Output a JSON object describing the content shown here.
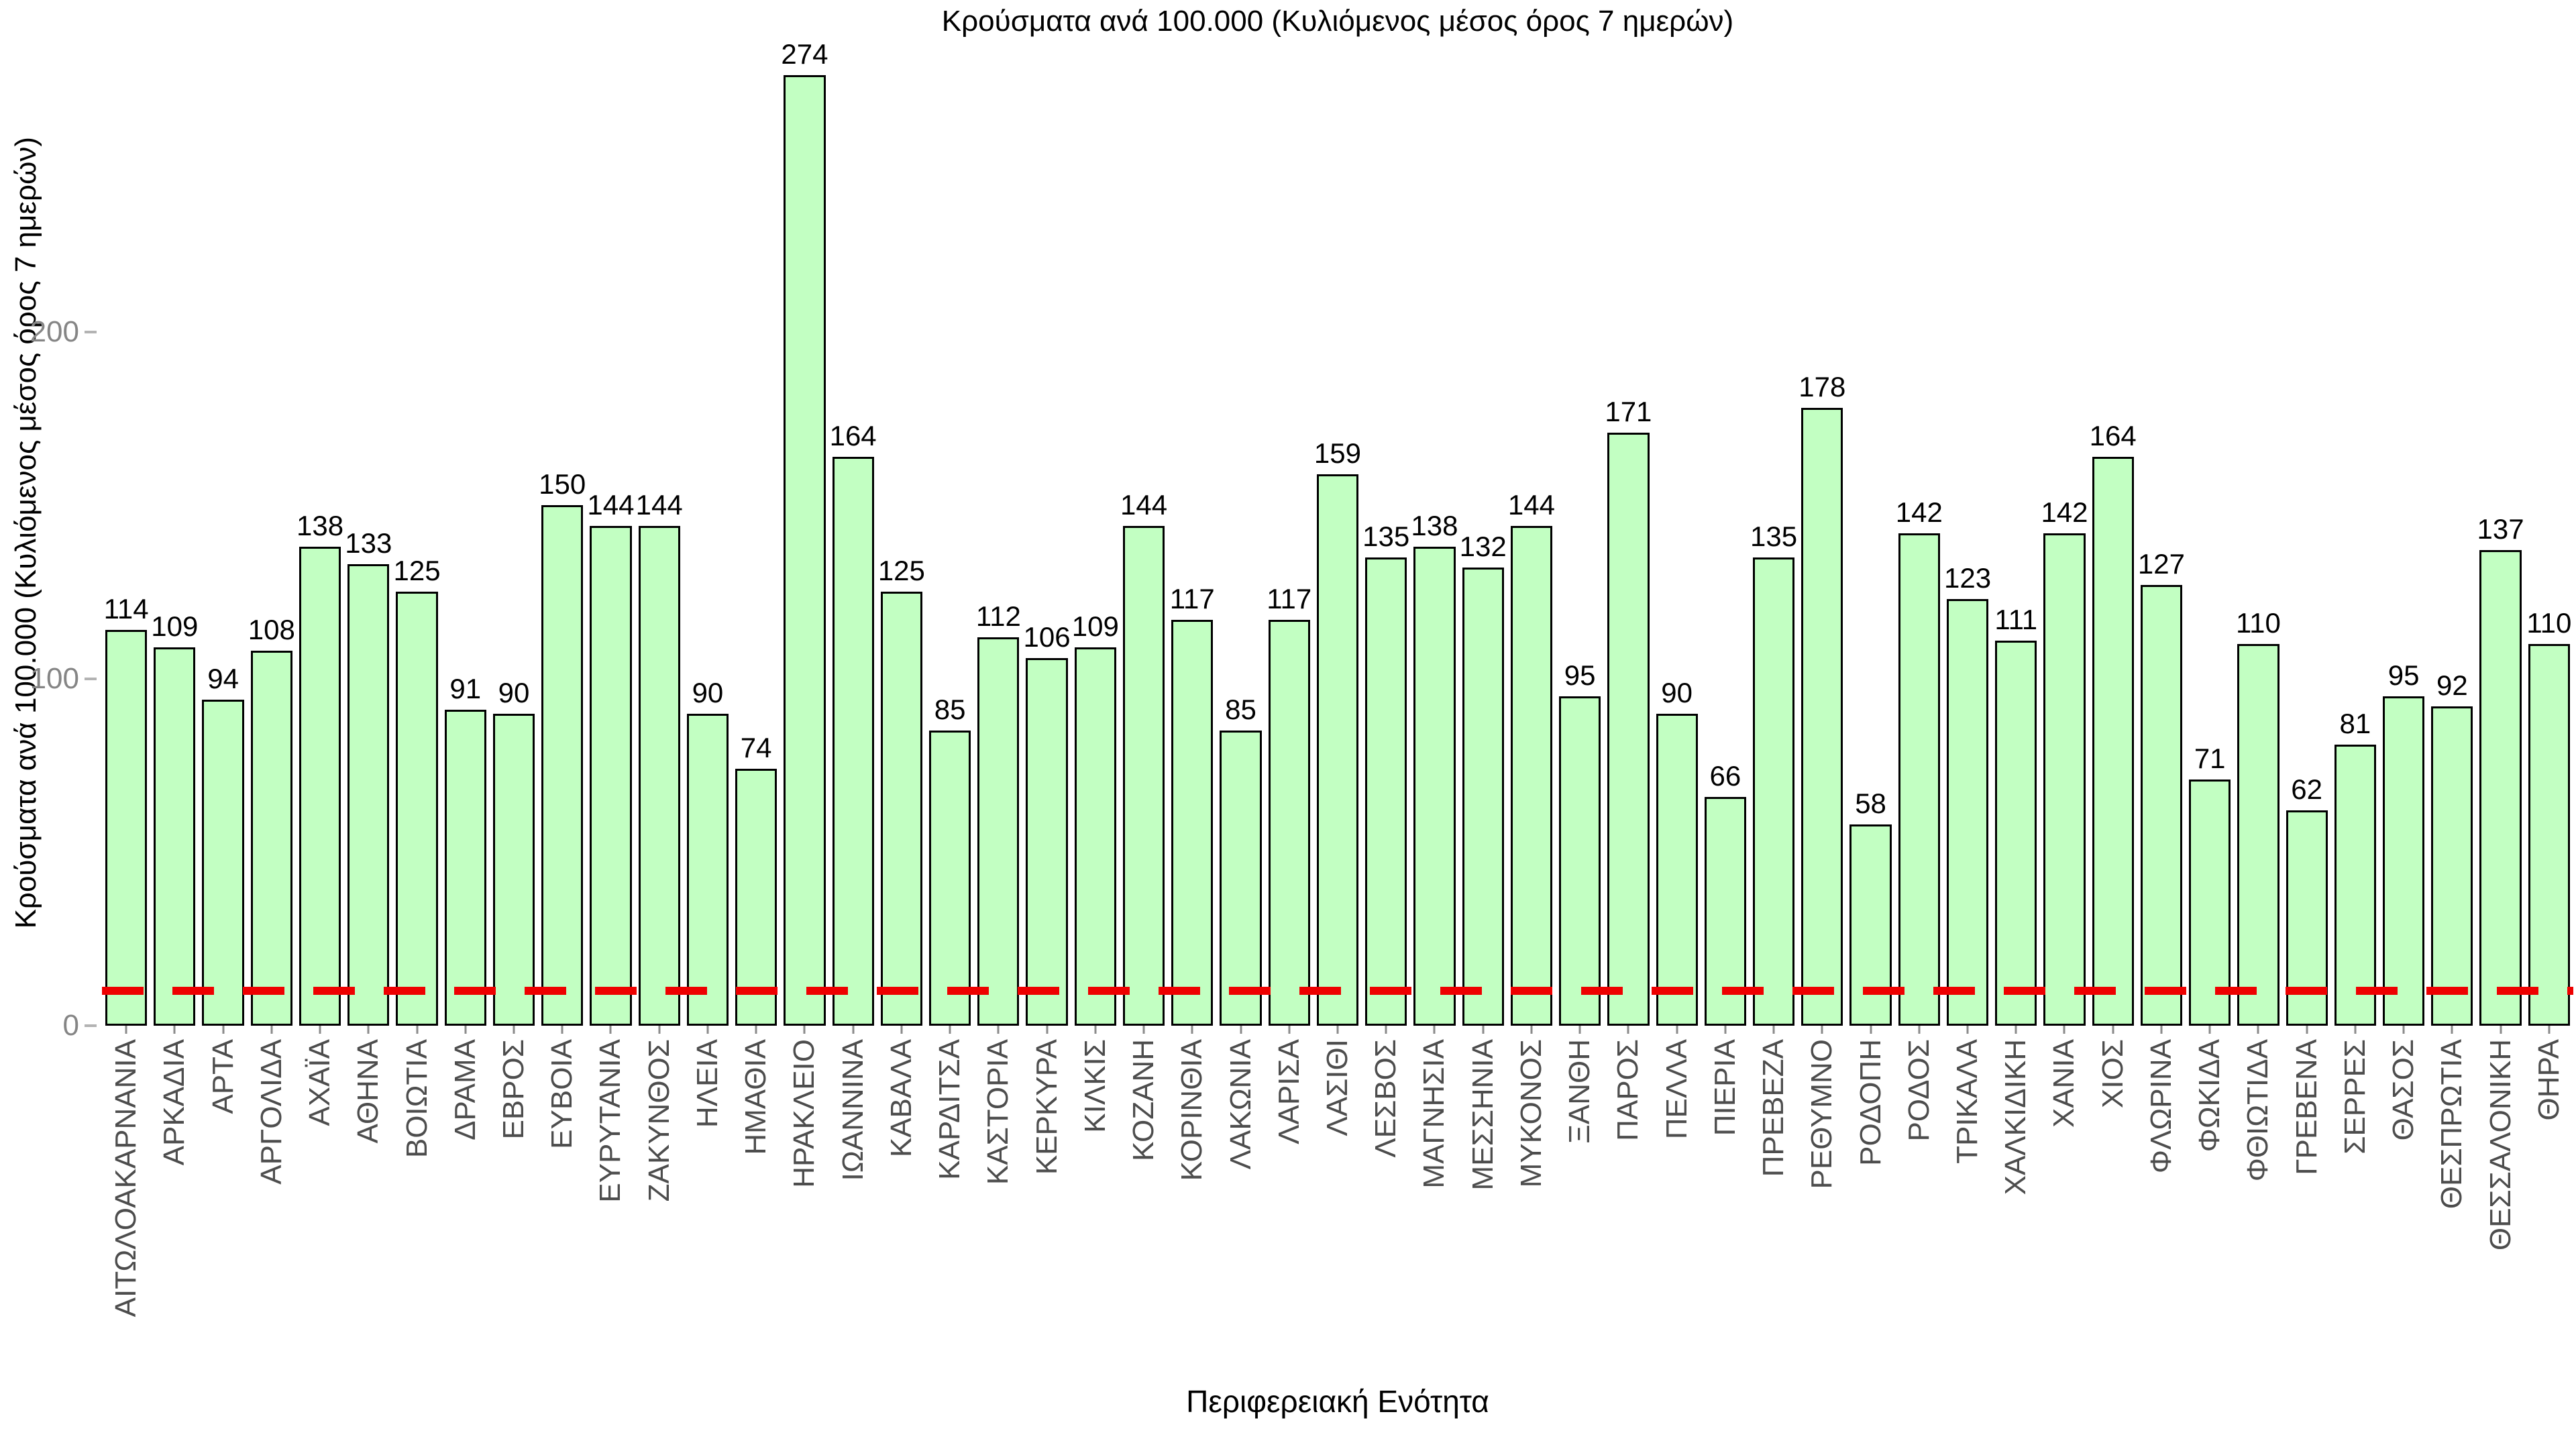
{
  "chart_data": {
    "type": "bar",
    "title": "Κρούσματα ανά 100.000 (Κυλιόμενος μέσος όρος 7 ημερών)",
    "ylabel": "Κρούσματα ανά 100.000 (Κυλιόμενος μέσος όρος 7 ημερών)",
    "xlabel": "Περιφερειακή Ενότητα",
    "categories": [
      "ΑΙΤΩΛΟΑΚΑΡΝΑΝΙΑ",
      "ΑΡΚΑΔΙΑ",
      "ΑΡΤΑ",
      "ΑΡΓΟΛΙΔΑ",
      "ΑΧΑΪΑ",
      "ΑΘΗΝΑ",
      "ΒΟΙΩΤΙΑ",
      "ΔΡΑΜΑ",
      "ΕΒΡΟΣ",
      "ΕΥΒΟΙΑ",
      "ΕΥΡΥΤΑΝΙΑ",
      "ΖΑΚΥΝΘΟΣ",
      "ΗΛΕΙΑ",
      "ΗΜΑΘΙΑ",
      "ΗΡΑΚΛΕΙΟ",
      "ΙΩΑΝΝΙΝΑ",
      "ΚΑΒΑΛΑ",
      "ΚΑΡΔΙΤΣΑ",
      "ΚΑΣΤΟΡΙΑ",
      "ΚΕΡΚΥΡΑ",
      "ΚΙΛΚΙΣ",
      "ΚΟΖΑΝΗ",
      "ΚΟΡΙΝΘΙΑ",
      "ΛΑΚΩΝΙΑ",
      "ΛΑΡΙΣΑ",
      "ΛΑΣΙΘΙ",
      "ΛΕΣΒΟΣ",
      "ΜΑΓΝΗΣΙΑ",
      "ΜΕΣΣΗΝΙΑ",
      "ΜΥΚΟΝΟΣ",
      "ΞΑΝΘΗ",
      "ΠΑΡΟΣ",
      "ΠΕΛΛΑ",
      "ΠΙΕΡΙΑ",
      "ΠΡΕΒΕΖΑ",
      "ΡΕΘΥΜΝΟ",
      "ΡΟΔΟΠΗ",
      "ΡΟΔΟΣ",
      "ΤΡΙΚΑΛΑ",
      "ΧΑΛΚΙΔΙΚΗ",
      "ΧΑΝΙΑ",
      "ΧΙΟΣ",
      "ΦΛΩΡΙΝΑ",
      "ΦΩΚΙΔΑ",
      "ΦΘΙΩΤΙΔΑ",
      "ΓΡΕΒΕΝΑ",
      "ΣΕΡΡΕΣ",
      "ΘΑΣΟΣ",
      "ΘΕΣΠΡΩΤΙΑ",
      "ΘΕΣΣΑΛΟΝΙΚΗ",
      "ΘΗΡΑ"
    ],
    "values": [
      114,
      109,
      94,
      108,
      138,
      133,
      125,
      91,
      90,
      150,
      144,
      144,
      90,
      74,
      274,
      164,
      125,
      85,
      112,
      106,
      109,
      144,
      117,
      85,
      117,
      159,
      135,
      138,
      132,
      144,
      95,
      171,
      90,
      66,
      135,
      178,
      58,
      142,
      123,
      111,
      142,
      164,
      127,
      71,
      110,
      62,
      81,
      95,
      92,
      137,
      110
    ],
    "yticks": [
      0,
      100,
      200
    ],
    "ytick_labels": [
      "0",
      "100",
      "200"
    ],
    "ylim": [
      0,
      284
    ],
    "grid": false,
    "legend": null,
    "threshold_line": {
      "y": 10,
      "style": "dashed",
      "color": "#ee0000"
    },
    "colors": {
      "bar_fill": "#c2ffc2",
      "bar_border": "#000000",
      "threshold": "#ee0000",
      "ytick_text": "#858585",
      "xtick_text": "#4d4d4d",
      "background": "#ffffff"
    }
  }
}
